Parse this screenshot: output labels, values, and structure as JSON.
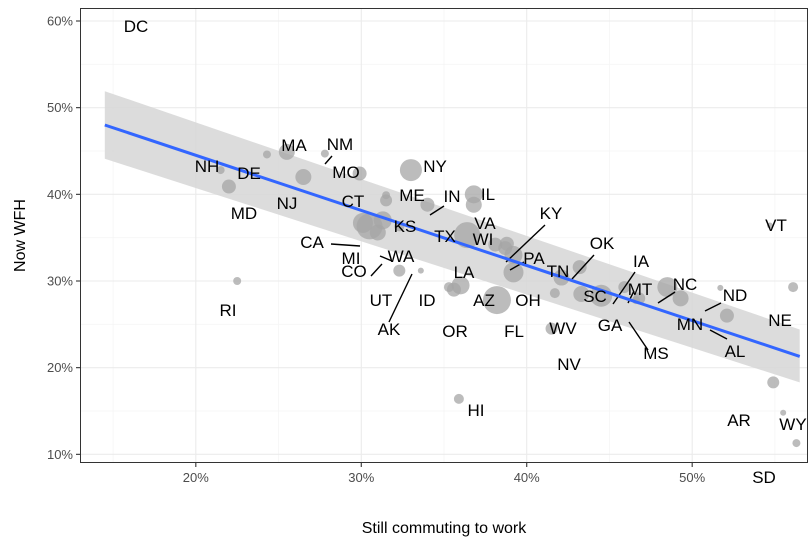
{
  "chart_data": {
    "type": "scatter",
    "title": "",
    "xlabel": "Still commuting to work",
    "ylabel": "Now WFH",
    "xlim": [
      0.13,
      0.57
    ],
    "ylim": [
      0.09,
      0.615
    ],
    "x_ticks": [
      0.2,
      0.3,
      0.4,
      0.5
    ],
    "x_tick_labels": [
      "20%",
      "30%",
      "40%",
      "50%"
    ],
    "y_ticks": [
      0.1,
      0.2,
      0.3,
      0.4,
      0.5,
      0.6
    ],
    "y_tick_labels": [
      "10%",
      "20%",
      "30%",
      "40%",
      "50%",
      "60%"
    ],
    "grid": true,
    "legend": "none",
    "colors": {
      "points": "#a6a6a6",
      "fit_line": "#3366ff",
      "confidence_band": "#d6d6d6",
      "grid_major": "#ebebeb",
      "grid_minor": "#f5f5f5",
      "panel_border": "#333333"
    },
    "regression": {
      "x": [
        0.145,
        0.565
      ],
      "y": [
        0.48,
        0.213
      ],
      "band_upper": [
        0.519,
        0.244
      ],
      "band_lower": [
        0.441,
        0.183
      ]
    },
    "points": [
      {
        "state": "DC",
        "x": 0.14,
        "y": 0.62,
        "size": 3,
        "label_dx": 0,
        "label_dy": 0
      },
      {
        "state": "MA",
        "x": 0.255,
        "y": 0.449,
        "size": 8,
        "label_dx": 0,
        "label_dy": 0
      },
      {
        "state": "NM",
        "x": 0.278,
        "y": 0.447,
        "size": 4,
        "label_dx": 0,
        "label_dy": 0
      },
      {
        "state": "NH",
        "x": 0.215,
        "y": 0.428,
        "size": 4,
        "label_dx": 0,
        "label_dy": 0
      },
      {
        "state": "DE",
        "x": 0.243,
        "y": 0.446,
        "size": 4,
        "label_dx": 0,
        "label_dy": 0
      },
      {
        "state": "MO",
        "x": 0.299,
        "y": 0.424,
        "size": 7,
        "label_dx": 0,
        "label_dy": 0
      },
      {
        "state": "NY",
        "x": 0.33,
        "y": 0.428,
        "size": 11,
        "label_dx": 0,
        "label_dy": 0
      },
      {
        "state": "NJ",
        "x": 0.265,
        "y": 0.42,
        "size": 8,
        "label_dx": 0,
        "label_dy": 0
      },
      {
        "state": "MD",
        "x": 0.22,
        "y": 0.409,
        "size": 7,
        "label_dx": 0,
        "label_dy": 0
      },
      {
        "state": "CT",
        "x": 0.315,
        "y": 0.393,
        "size": 6,
        "label_dx": 0,
        "label_dy": 0
      },
      {
        "state": "ME",
        "x": 0.315,
        "y": 0.399,
        "size": 4,
        "label_dx": 0,
        "label_dy": 0
      },
      {
        "state": "IN",
        "x": 0.34,
        "y": 0.388,
        "size": 7,
        "label_dx": 0,
        "label_dy": 0
      },
      {
        "state": "IL",
        "x": 0.368,
        "y": 0.4,
        "size": 9,
        "label_dx": 0,
        "label_dy": 0
      },
      {
        "state": "VA",
        "x": 0.368,
        "y": 0.388,
        "size": 8,
        "label_dx": 0,
        "label_dy": 0
      },
      {
        "state": "KS",
        "x": 0.323,
        "y": 0.363,
        "size": 5,
        "label_dx": 0,
        "label_dy": 0
      },
      {
        "state": "TX",
        "x": 0.364,
        "y": 0.353,
        "size": 13,
        "label_dx": 0,
        "label_dy": 0
      },
      {
        "state": "KY",
        "x": 0.387,
        "y": 0.338,
        "size": 7,
        "label_dx": 0,
        "label_dy": 0
      },
      {
        "state": "WI",
        "x": 0.388,
        "y": 0.343,
        "size": 7,
        "label_dx": 0,
        "label_dy": 0
      },
      {
        "state": "PA",
        "x": 0.392,
        "y": 0.33,
        "size": 9,
        "label_dx": 0,
        "label_dy": 0
      },
      {
        "state": "LA",
        "x": 0.381,
        "y": 0.342,
        "size": 7,
        "label_dx": 0,
        "label_dy": 0
      },
      {
        "state": "CA",
        "x": 0.305,
        "y": 0.363,
        "size": 13,
        "label_dx": 0,
        "label_dy": 0
      },
      {
        "state": "MI",
        "x": 0.301,
        "y": 0.367,
        "size": 10,
        "label_dx": 0,
        "label_dy": 0
      },
      {
        "state": "CO",
        "x": 0.31,
        "y": 0.356,
        "size": 8,
        "label_dx": 0,
        "label_dy": 0
      },
      {
        "state": "WA",
        "x": 0.313,
        "y": 0.37,
        "size": 9,
        "label_dx": 0,
        "label_dy": 0
      },
      {
        "state": "OK",
        "x": 0.432,
        "y": 0.316,
        "size": 7,
        "label_dx": 0,
        "label_dy": 0
      },
      {
        "state": "TN",
        "x": 0.421,
        "y": 0.304,
        "size": 8,
        "label_dx": 0,
        "label_dy": 0
      },
      {
        "state": "IA",
        "x": 0.459,
        "y": 0.293,
        "size": 6,
        "label_dx": 0,
        "label_dy": 0
      },
      {
        "state": "OH",
        "x": 0.392,
        "y": 0.31,
        "size": 10,
        "label_dx": 0,
        "label_dy": 0
      },
      {
        "state": "AZ",
        "x": 0.36,
        "y": 0.295,
        "size": 9,
        "label_dx": 0,
        "label_dy": 0
      },
      {
        "state": "ID",
        "x": 0.353,
        "y": 0.293,
        "size": 5,
        "label_dx": 0,
        "label_dy": 0
      },
      {
        "state": "OR",
        "x": 0.356,
        "y": 0.29,
        "size": 7,
        "label_dx": 0,
        "label_dy": 0
      },
      {
        "state": "UT",
        "x": 0.323,
        "y": 0.312,
        "size": 6,
        "label_dx": 0,
        "label_dy": 0
      },
      {
        "state": "AK",
        "x": 0.336,
        "y": 0.312,
        "size": 3,
        "label_dx": 0,
        "label_dy": 0
      },
      {
        "state": "SC",
        "x": 0.433,
        "y": 0.285,
        "size": 8,
        "label_dx": 0,
        "label_dy": 0
      },
      {
        "state": "GA",
        "x": 0.445,
        "y": 0.283,
        "size": 11,
        "label_dx": 0,
        "label_dy": 0
      },
      {
        "state": "MT",
        "x": 0.466,
        "y": 0.278,
        "size": 4,
        "label_dx": 0,
        "label_dy": 0
      },
      {
        "state": "NC",
        "x": 0.485,
        "y": 0.293,
        "size": 10,
        "label_dx": 0,
        "label_dy": 0
      },
      {
        "state": "ND",
        "x": 0.517,
        "y": 0.292,
        "size": 3,
        "label_dx": 0,
        "label_dy": 0
      },
      {
        "state": "MS",
        "x": 0.468,
        "y": 0.28,
        "size": 6,
        "label_dx": 0,
        "label_dy": 0
      },
      {
        "state": "MN",
        "x": 0.493,
        "y": 0.28,
        "size": 8,
        "label_dx": 0,
        "label_dy": 0
      },
      {
        "state": "AL",
        "x": 0.521,
        "y": 0.26,
        "size": 7,
        "label_dx": 0,
        "label_dy": 0
      },
      {
        "state": "FL",
        "x": 0.382,
        "y": 0.278,
        "size": 14,
        "label_dx": 0,
        "label_dy": 0
      },
      {
        "state": "WV",
        "x": 0.417,
        "y": 0.286,
        "size": 5,
        "label_dx": 0,
        "label_dy": 0
      },
      {
        "state": "NV",
        "x": 0.415,
        "y": 0.245,
        "size": 6,
        "label_dx": 0,
        "label_dy": 0
      },
      {
        "state": "VT",
        "x": 0.547,
        "y": 0.364,
        "size": 3,
        "label_dx": 0,
        "label_dy": 0
      },
      {
        "state": "NE",
        "x": 0.561,
        "y": 0.293,
        "size": 5,
        "label_dx": 0,
        "label_dy": 0
      },
      {
        "state": "RI",
        "x": 0.225,
        "y": 0.3,
        "size": 4,
        "label_dx": 0,
        "label_dy": 0
      },
      {
        "state": "HI",
        "x": 0.359,
        "y": 0.164,
        "size": 5,
        "label_dx": 0,
        "label_dy": 0
      },
      {
        "state": "AR",
        "x": 0.549,
        "y": 0.183,
        "size": 6,
        "label_dx": 0,
        "label_dy": 0
      },
      {
        "state": "WY",
        "x": 0.555,
        "y": 0.148,
        "size": 3,
        "label_dx": 0,
        "label_dy": 0
      },
      {
        "state": "SD",
        "x": 0.563,
        "y": 0.113,
        "size": 4,
        "label_dx": 0,
        "label_dy": 0
      }
    ]
  }
}
